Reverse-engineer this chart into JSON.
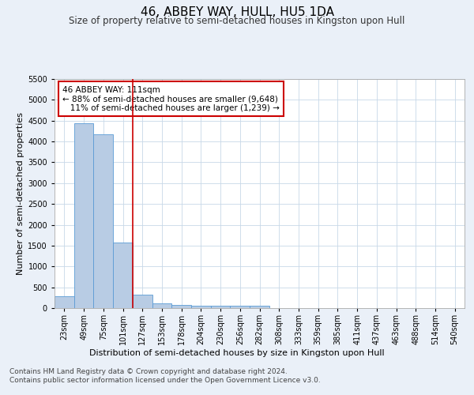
{
  "title": "46, ABBEY WAY, HULL, HU5 1DA",
  "subtitle": "Size of property relative to semi-detached houses in Kingston upon Hull",
  "xlabel": "Distribution of semi-detached houses by size in Kingston upon Hull",
  "ylabel": "Number of semi-detached properties",
  "footer_line1": "Contains HM Land Registry data © Crown copyright and database right 2024.",
  "footer_line2": "Contains public sector information licensed under the Open Government Licence v3.0.",
  "categories": [
    "23sqm",
    "49sqm",
    "75sqm",
    "101sqm",
    "127sqm",
    "153sqm",
    "178sqm",
    "204sqm",
    "230sqm",
    "256sqm",
    "282sqm",
    "308sqm",
    "333sqm",
    "359sqm",
    "385sqm",
    "411sqm",
    "437sqm",
    "463sqm",
    "488sqm",
    "514sqm",
    "540sqm"
  ],
  "values": [
    280,
    4440,
    4170,
    1570,
    325,
    120,
    80,
    65,
    60,
    65,
    50,
    0,
    0,
    0,
    0,
    0,
    0,
    0,
    0,
    0,
    0
  ],
  "bar_color": "#b8cce4",
  "bar_edge_color": "#5b9bd5",
  "red_line_x": 3.5,
  "pct_smaller": "88%",
  "count_smaller": "9,648",
  "pct_larger": "11%",
  "count_larger": "1,239",
  "annotation_box_color": "#ffffff",
  "annotation_box_edge_color": "#cc0000",
  "ylim": [
    0,
    5500
  ],
  "yticks": [
    0,
    500,
    1000,
    1500,
    2000,
    2500,
    3000,
    3500,
    4000,
    4500,
    5000,
    5500
  ],
  "bg_color": "#eaf0f8",
  "plot_bg_color": "#ffffff",
  "grid_color": "#c8d8e8",
  "title_fontsize": 11,
  "subtitle_fontsize": 8.5,
  "axis_label_fontsize": 8,
  "tick_fontsize": 7,
  "footer_fontsize": 6.5,
  "annot_fontsize": 7.5
}
